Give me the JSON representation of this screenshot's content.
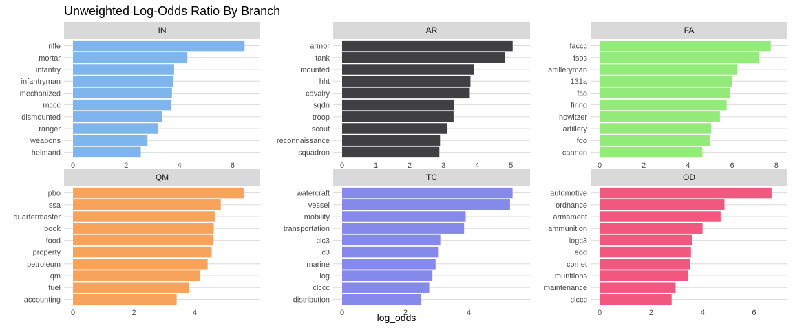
{
  "title": "Unweighted Log-Odds Ratio By Branch",
  "xlabel": "log_odds",
  "chart_data": [
    {
      "type": "bar",
      "orientation": "horizontal",
      "panel": "IN",
      "color": "#7EB5EC",
      "categories": [
        "rifle",
        "mortar",
        "infantry",
        "infantryman",
        "mechanized",
        "mccc",
        "dismounted",
        "ranger",
        "weapons",
        "helmand"
      ],
      "values": [
        6.45,
        4.3,
        3.8,
        3.78,
        3.72,
        3.7,
        3.35,
        3.2,
        2.8,
        2.55
      ],
      "xlim": [
        0,
        6.7
      ],
      "xticks": [
        0,
        2,
        4,
        6
      ]
    },
    {
      "type": "bar",
      "orientation": "horizontal",
      "panel": "AR",
      "color": "#404042",
      "categories": [
        "armor",
        "tank",
        "mounted",
        "hht",
        "cavalry",
        "sqdn",
        "troop",
        "scout",
        "reconnaissance",
        "squadron"
      ],
      "values": [
        5.05,
        4.82,
        3.9,
        3.8,
        3.78,
        3.32,
        3.3,
        3.12,
        2.9,
        2.88
      ],
      "xlim": [
        0,
        5.3
      ],
      "xticks": [
        0,
        1,
        2,
        3,
        4,
        5
      ]
    },
    {
      "type": "bar",
      "orientation": "horizontal",
      "panel": "FA",
      "color": "#93EC7A",
      "categories": [
        "faccc",
        "fsos",
        "artilleryman",
        "131a",
        "fso",
        "firing",
        "howitzer",
        "artillery",
        "fdo",
        "cannon"
      ],
      "values": [
        7.75,
        7.2,
        6.2,
        6.0,
        5.9,
        5.75,
        5.45,
        5.05,
        5.0,
        4.65
      ],
      "xlim": [
        0,
        8.1
      ],
      "xticks": [
        0,
        2,
        4,
        6,
        8
      ]
    },
    {
      "type": "bar",
      "orientation": "horizontal",
      "panel": "QM",
      "color": "#F7A35C",
      "categories": [
        "pbo",
        "ssa",
        "quartermaster",
        "book",
        "food",
        "property",
        "petroleum",
        "qm",
        "fuel",
        "accounting"
      ],
      "values": [
        5.6,
        4.85,
        4.65,
        4.62,
        4.6,
        4.55,
        4.42,
        4.18,
        3.8,
        3.4
      ],
      "xlim": [
        0,
        5.85
      ],
      "xticks": [
        0,
        2,
        4
      ]
    },
    {
      "type": "bar",
      "orientation": "horizontal",
      "panel": "TC",
      "color": "#8489EA",
      "categories": [
        "watercraft",
        "vessel",
        "mobility",
        "transportation",
        "clc3",
        "c3",
        "marine",
        "log",
        "clccc",
        "distribution"
      ],
      "values": [
        5.38,
        5.3,
        3.9,
        3.85,
        3.1,
        3.05,
        2.95,
        2.85,
        2.75,
        2.5
      ],
      "xlim": [
        0,
        5.65
      ],
      "xticks": [
        0,
        2,
        4
      ]
    },
    {
      "type": "bar",
      "orientation": "horizontal",
      "panel": "OD",
      "color": "#F2587F",
      "categories": [
        "automotive",
        "ordnance",
        "armament",
        "ammunition",
        "logc3",
        "eod",
        "comet",
        "munitions",
        "maintenance",
        "clccc"
      ],
      "values": [
        6.68,
        4.85,
        4.7,
        4.0,
        3.6,
        3.55,
        3.52,
        3.45,
        2.95,
        2.8
      ],
      "xlim": [
        0,
        6.95
      ],
      "xticks": [
        0,
        2,
        4,
        6
      ]
    }
  ]
}
